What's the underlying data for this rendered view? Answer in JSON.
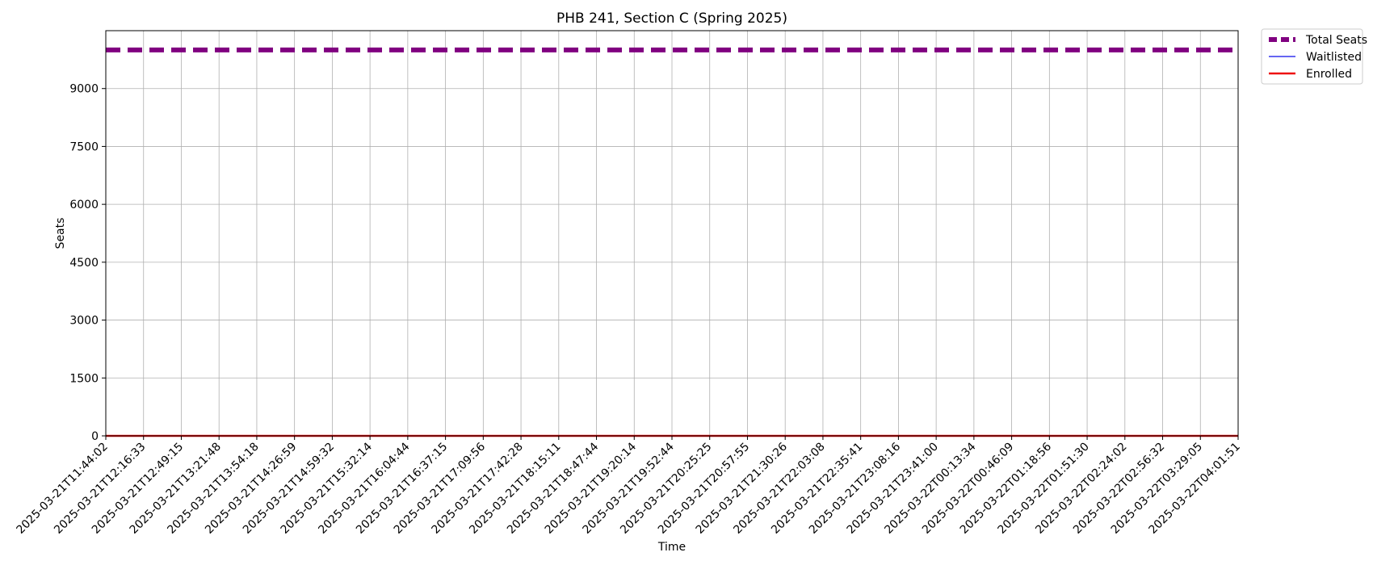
{
  "chart_data": {
    "type": "line",
    "title": "PHB 241, Section C (Spring 2025)",
    "xlabel": "Time",
    "ylabel": "Seats",
    "ylim": [
      0,
      10500
    ],
    "yticks": [
      0,
      1500,
      3000,
      4500,
      6000,
      7500,
      9000
    ],
    "grid": true,
    "legend_position": "outside-top-right",
    "x": [
      "2025-03-21T11:44:02",
      "2025-03-21T12:16:33",
      "2025-03-21T12:49:15",
      "2025-03-21T13:21:48",
      "2025-03-21T13:54:18",
      "2025-03-21T14:26:59",
      "2025-03-21T14:59:32",
      "2025-03-21T15:32:14",
      "2025-03-21T16:04:44",
      "2025-03-21T16:37:15",
      "2025-03-21T17:09:56",
      "2025-03-21T17:42:28",
      "2025-03-21T18:15:11",
      "2025-03-21T18:47:44",
      "2025-03-21T19:20:14",
      "2025-03-21T19:52:44",
      "2025-03-21T20:25:25",
      "2025-03-21T20:57:55",
      "2025-03-21T21:30:26",
      "2025-03-21T22:03:08",
      "2025-03-21T22:35:41",
      "2025-03-21T23:08:16",
      "2025-03-21T23:41:00",
      "2025-03-22T00:13:34",
      "2025-03-22T00:46:09",
      "2025-03-22T01:18:56",
      "2025-03-22T01:51:30",
      "2025-03-22T02:24:02",
      "2025-03-22T02:56:32",
      "2025-03-22T03:29:05",
      "2025-03-22T04:01:51"
    ],
    "series": [
      {
        "name": "Total Seats",
        "color": "#800080",
        "style": "dashed",
        "value": 10000
      },
      {
        "name": "Waitlisted",
        "color": "#3333ee",
        "style": "solid",
        "value": 0
      },
      {
        "name": "Enrolled",
        "color": "#ee1111",
        "style": "solid",
        "value": 0
      }
    ]
  }
}
